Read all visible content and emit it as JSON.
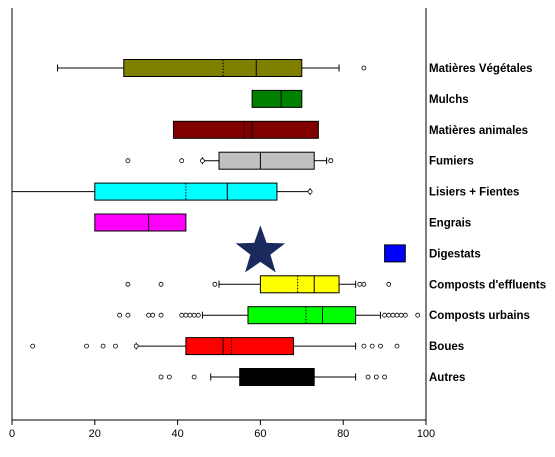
{
  "chart_data": {
    "type": "boxplot",
    "orientation": "horizontal",
    "xlim": [
      0,
      100
    ],
    "x_ticks": [
      "0",
      "20",
      "40",
      "60",
      "80",
      "100"
    ],
    "grid": false,
    "legend": "none",
    "categories": [
      {
        "label": "Matières Végétales",
        "color": "#808000",
        "whisker_low": 11,
        "q1": 27,
        "median": 59,
        "mean": 51,
        "q3": 70,
        "whisker_high": 79,
        "outliers": [
          85
        ]
      },
      {
        "label": "Mulchs",
        "color": "#008000",
        "whisker_low": 58,
        "q1": 58,
        "median": 65,
        "mean": null,
        "q3": 70,
        "whisker_high": 70,
        "outliers": []
      },
      {
        "label": "Matières animales",
        "color": "#800000",
        "whisker_low": 39,
        "q1": 39,
        "median": 58,
        "mean": 56,
        "q3": 74,
        "whisker_high": 74,
        "outliers": []
      },
      {
        "label": "Fumiers",
        "color": "#c0c0c0",
        "whisker_low": 46,
        "q1": 50,
        "median": 60,
        "mean": null,
        "q3": 73,
        "whisker_high": 76,
        "outliers": [
          28,
          41,
          46,
          77,
          77
        ]
      },
      {
        "label": "Lisiers + Fientes",
        "color": "#00ffff",
        "whisker_low": 0,
        "q1": 20,
        "median": 52,
        "mean": 42,
        "q3": 64,
        "whisker_high": 72,
        "outliers": [
          72
        ]
      },
      {
        "label": "Engrais",
        "color": "#ff00ff",
        "whisker_low": 20,
        "q1": 20,
        "median": 33,
        "mean": null,
        "q3": 42,
        "whisker_high": 42,
        "outliers": []
      },
      {
        "label": "Digestats",
        "color": "#0000ff",
        "whisker_low": 90,
        "q1": 90,
        "median": null,
        "mean": null,
        "q3": 95,
        "whisker_high": 95,
        "outliers": []
      },
      {
        "label": "Composts d'effluents",
        "color": "#ffff00",
        "whisker_low": 50,
        "q1": 60,
        "median": 73,
        "mean": 69,
        "q3": 79,
        "whisker_high": 83,
        "outliers": [
          28,
          36,
          49,
          84,
          85,
          91
        ]
      },
      {
        "label": "Composts urbains",
        "color": "#00ff00",
        "whisker_low": 46,
        "q1": 57,
        "median": 75,
        "mean": 71,
        "q3": 83,
        "whisker_high": 89,
        "outliers": [
          26,
          28,
          33,
          34,
          36,
          41,
          42,
          43,
          44,
          45,
          90,
          91,
          92,
          93,
          94,
          95,
          98
        ]
      },
      {
        "label": "Boues",
        "color": "#ff0000",
        "whisker_low": 30,
        "q1": 42,
        "median": 51,
        "mean": 53,
        "q3": 68,
        "whisker_high": 83,
        "outliers": [
          5,
          18,
          22,
          25,
          30,
          85,
          87,
          89,
          93
        ]
      },
      {
        "label": "Autres",
        "color": "#000000",
        "whisker_low": 48,
        "q1": 55,
        "median": null,
        "mean": null,
        "q3": 73,
        "whisker_high": 83,
        "outliers": [
          36,
          38,
          44,
          86,
          88,
          90
        ]
      }
    ],
    "marker": {
      "shape": "star",
      "color": "#1a2a5c",
      "x": 60,
      "row_index": 6
    }
  }
}
